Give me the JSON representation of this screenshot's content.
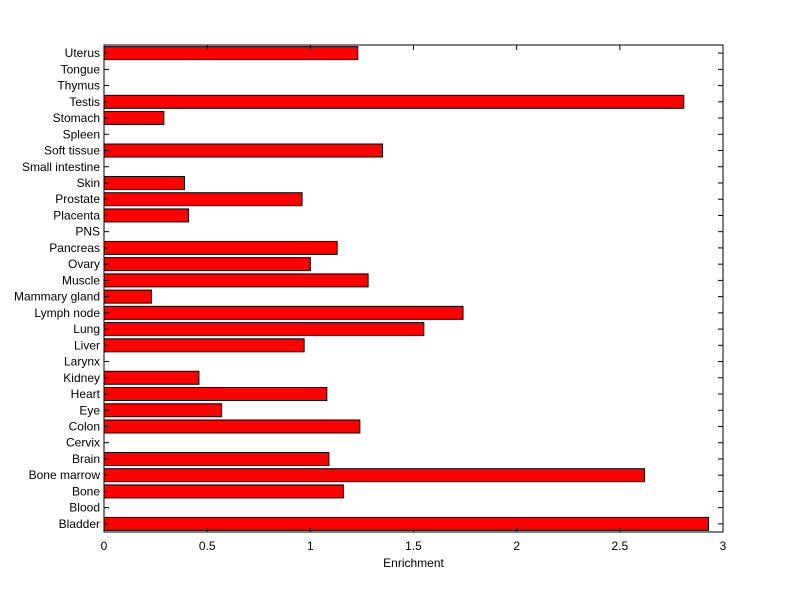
{
  "chart_data": {
    "type": "bar",
    "orientation": "horizontal",
    "title": "",
    "xlabel": "Enrichment",
    "ylabel": "",
    "xlim": [
      0,
      3
    ],
    "xticks": [
      "0",
      "0.5",
      "1",
      "1.5",
      "2",
      "2.5",
      "3"
    ],
    "grid": false,
    "bar_color": "#ff0000",
    "edge_color": "#000000",
    "categories": [
      "Bladder",
      "Blood",
      "Bone",
      "Bone marrow",
      "Brain",
      "Cervix",
      "Colon",
      "Eye",
      "Heart",
      "Kidney",
      "Larynx",
      "Liver",
      "Lung",
      "Lymph node",
      "Mammary gland",
      "Muscle",
      "Ovary",
      "Pancreas",
      "PNS",
      "Placenta",
      "Prostate",
      "Skin",
      "Small intestine",
      "Soft tissue",
      "Spleen",
      "Stomach",
      "Testis",
      "Thymus",
      "Tongue",
      "Uterus"
    ],
    "values": [
      2.93,
      0,
      1.16,
      2.62,
      1.09,
      0,
      1.24,
      0.57,
      1.08,
      0.46,
      0,
      0.97,
      1.55,
      1.74,
      0.23,
      1.28,
      1.0,
      1.13,
      0,
      0.41,
      0.96,
      0.39,
      0,
      1.35,
      0,
      0.29,
      2.81,
      0,
      0,
      1.23
    ]
  }
}
